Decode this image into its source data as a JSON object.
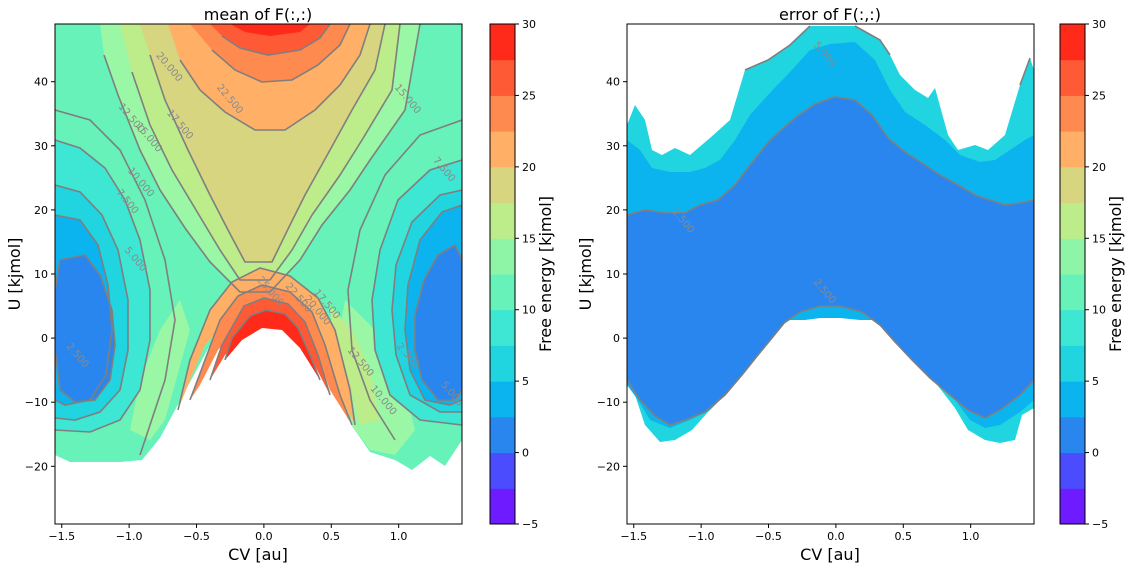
{
  "chart_data": [
    {
      "type": "contour",
      "title": "mean of F(:,:)",
      "xlabel": "CV [au]",
      "ylabel": "U [kjmol]",
      "xlim": [
        -1.55,
        1.47
      ],
      "ylim": [
        -29,
        49
      ],
      "xticks": [
        "−1.5",
        "−1.0",
        "−0.5",
        "0.0",
        "0.5",
        "1.0"
      ],
      "yticks": [
        "−20",
        "−10",
        "0",
        "10",
        "20",
        "30",
        "40"
      ],
      "colorbar": {
        "label": "Free energy [kjmol]",
        "ticks": [
          "−5",
          "0",
          "5",
          "10",
          "15",
          "20",
          "25",
          "30"
        ],
        "range": [
          -5,
          30
        ],
        "levels": 14
      },
      "contour_labels": [
        {
          "text": "20.000",
          "x": -0.72,
          "y": 42
        },
        {
          "text": "22.500",
          "x": -0.27,
          "y": 37
        },
        {
          "text": "12.500",
          "x": -1.0,
          "y": 34
        },
        {
          "text": "15.000",
          "x": -0.87,
          "y": 31
        },
        {
          "text": "17.500",
          "x": -0.64,
          "y": 33
        },
        {
          "text": "15.000",
          "x": 1.05,
          "y": 37
        },
        {
          "text": "7.500",
          "x": 1.32,
          "y": 26
        },
        {
          "text": "10.000",
          "x": -0.93,
          "y": 24
        },
        {
          "text": "7.500",
          "x": -1.03,
          "y": 21
        },
        {
          "text": "5.000",
          "x": -0.97,
          "y": 12
        },
        {
          "text": "25.000",
          "x": 0.03,
          "y": 7
        },
        {
          "text": "22.500",
          "x": 0.24,
          "y": 6
        },
        {
          "text": "20.000",
          "x": 0.38,
          "y": 4
        },
        {
          "text": "17.500",
          "x": 0.45,
          "y": 5
        },
        {
          "text": "12.500",
          "x": 0.7,
          "y": -4
        },
        {
          "text": "10.000",
          "x": 0.87,
          "y": -10
        },
        {
          "text": "2.500",
          "x": -1.4,
          "y": -3
        },
        {
          "text": "2.500",
          "x": 1.05,
          "y": -3
        },
        {
          "text": "5.000",
          "x": 1.38,
          "y": -9
        }
      ]
    },
    {
      "type": "contour",
      "title": "error of F(:,:)",
      "xlabel": "CV [au]",
      "ylabel": "U [kjmol]",
      "xlim": [
        -1.55,
        1.47
      ],
      "ylim": [
        -29,
        49
      ],
      "xticks": [
        "−1.5",
        "−1.0",
        "−0.5",
        "0.0",
        "0.5",
        "1.0"
      ],
      "yticks": [
        "−20",
        "−10",
        "0",
        "10",
        "20",
        "30",
        "40"
      ],
      "colorbar": {
        "label": "Free energy [kjmol]",
        "ticks": [
          "−5",
          "0",
          "5",
          "10",
          "15",
          "20",
          "25",
          "30"
        ],
        "range": [
          -5,
          30
        ],
        "levels": 14
      },
      "contour_labels": [
        {
          "text": "5.000",
          "x": -0.1,
          "y": 44
        },
        {
          "text": "2.500",
          "x": -1.15,
          "y": 18
        },
        {
          "text": "2.500",
          "x": -0.1,
          "y": 7
        }
      ]
    }
  ]
}
